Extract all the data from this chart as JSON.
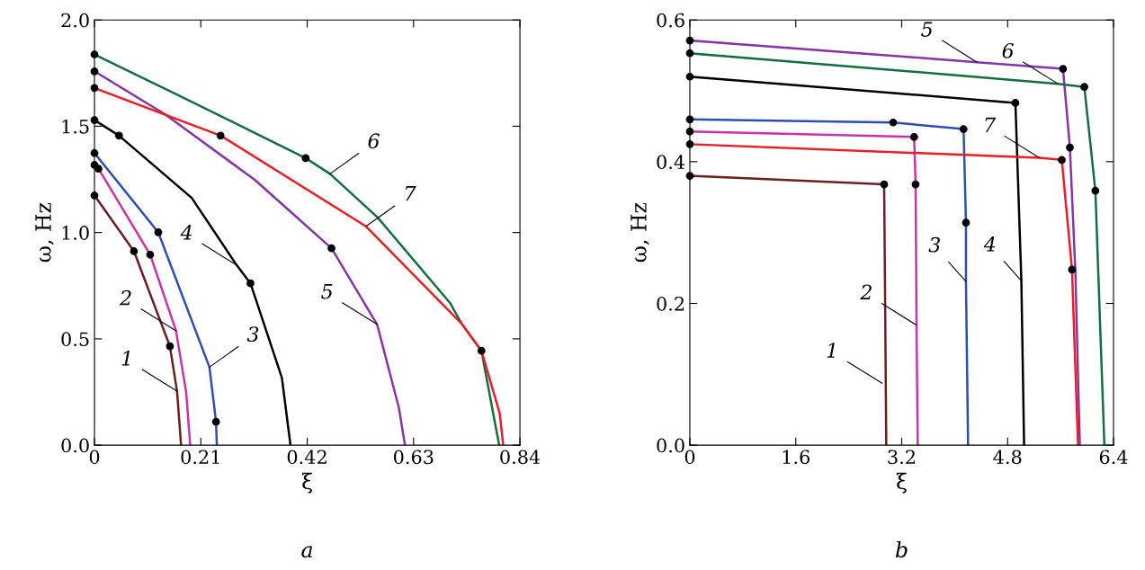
{
  "chart_data": [
    {
      "type": "line",
      "xlabel": "ξ",
      "ylabel": "ω, Hz",
      "xlim": [
        0,
        0.84
      ],
      "ylim": [
        0,
        2.0
      ],
      "xticks": [
        {
          "value": 0,
          "label": "0"
        },
        0.21,
        0.42,
        0.63,
        0.84
      ],
      "yticks": [
        {
          "value": 0,
          "label": "0.0"
        },
        0.5,
        {
          "value": 1,
          "label": "1.0"
        },
        1.5,
        {
          "value": 2,
          "label": "2.0"
        }
      ],
      "grid": false,
      "legend": false,
      "series": [
        {
          "color": "#6b1f1f",
          "x": [
            0,
            0.078,
            0.149,
            0.163,
            0.171
          ],
          "values": [
            1.175,
            0.912,
            0.465,
            0.254,
            0
          ]
        },
        {
          "color": "#cc33aa",
          "x": [
            0,
            0.008,
            0.11,
            0.161,
            0.181,
            0.189
          ],
          "values": [
            1.318,
            1.3,
            0.896,
            0.538,
            0.25,
            0
          ]
        },
        {
          "color": "#2a4fb5",
          "x": [
            0,
            0.126,
            0.227,
            0.24,
            0.2416
          ],
          "values": [
            1.374,
            1.001,
            0.367,
            0.11,
            0
          ]
        },
        {
          "color": "#000000",
          "x": [
            0,
            0.0485,
            0.192,
            0.281,
            0.308,
            0.37,
            0.387
          ],
          "values": [
            1.529,
            1.456,
            1.163,
            0.846,
            0.761,
            0.317,
            0
          ]
        },
        {
          "color": "#8833aa",
          "x": [
            0,
            0.139,
            0.317,
            0.468,
            0.558,
            0.601,
            0.613
          ],
          "values": [
            1.758,
            1.557,
            1.247,
            0.926,
            0.568,
            0.176,
            0
          ]
        },
        {
          "color": "#12703c",
          "x": [
            0,
            0.169,
            0.417,
            0.465,
            0.559,
            0.702,
            0.725,
            0.764,
            0.799
          ],
          "values": [
            1.838,
            1.642,
            1.35,
            1.276,
            1.071,
            0.669,
            0.571,
            0.444,
            0
          ]
        },
        {
          "color": "#ee1c24",
          "x": [
            0,
            0.249,
            0.536,
            0.725,
            0.764,
            0.8,
            0.807
          ],
          "values": [
            1.68,
            1.456,
            1.029,
            0.571,
            0.444,
            0.15,
            0
          ]
        },
        {
          "type": "scatter",
          "color": "#000000",
          "marker": "circle",
          "x": [
            0,
            0,
            0,
            0,
            0,
            0,
            0.008,
            0,
            0.0485,
            0.249,
            0.417,
            0.126,
            0.078,
            0.11,
            0.308,
            0.468,
            0.149,
            0.24,
            0.764
          ],
          "values": [
            1.838,
            1.758,
            1.68,
            1.529,
            1.374,
            1.318,
            1.3,
            1.175,
            1.456,
            1.456,
            1.35,
            1.001,
            0.912,
            0.896,
            0.761,
            0.926,
            0.465,
            0.11,
            0.444
          ]
        }
      ],
      "annotations": [
        {
          "text": "1",
          "x": 0.163,
          "y": 0.254
        },
        {
          "text": "2",
          "x": 0.161,
          "y": 0.538
        },
        {
          "text": "3",
          "x": 0.227,
          "y": 0.367
        },
        {
          "text": "4",
          "x": 0.281,
          "y": 0.846
        },
        {
          "text": "5",
          "x": 0.558,
          "y": 0.568
        },
        {
          "text": "6",
          "x": 0.465,
          "y": 1.276
        },
        {
          "text": "7",
          "x": 0.536,
          "y": 1.029
        },
        "a"
      ]
    },
    {
      "type": "line",
      "xlabel": "ξ",
      "ylabel": "ω, Hz",
      "xlim": [
        0,
        6.4
      ],
      "ylim": [
        0,
        0.6
      ],
      "xticks": [
        {
          "value": 0,
          "label": "0"
        },
        1.6,
        3.2,
        4.8,
        6.4
      ],
      "yticks": [
        {
          "value": 0,
          "label": "0.0"
        },
        0.2,
        0.4,
        0.6
      ],
      "grid": false,
      "legend": false,
      "series": [
        {
          "color": "#6b1f1f",
          "x": [
            0,
            2.935,
            2.95,
            2.967
          ],
          "values": [
            0.38,
            0.368,
            0.2,
            0
          ]
        },
        {
          "color": "#cc33aa",
          "x": [
            0,
            3.388,
            3.41,
            3.424,
            3.442
          ],
          "values": [
            0.4426,
            0.4349,
            0.368,
            0.1694,
            0
          ]
        },
        {
          "color": "#2a4fb5",
          "x": [
            0,
            3.071,
            4.135,
            4.171,
            4.171,
            4.203
          ],
          "values": [
            0.4596,
            0.4553,
            0.446,
            0.314,
            0.231,
            0
          ]
        },
        {
          "color": "#000000",
          "x": [
            0,
            4.918,
            5.008,
            5.049
          ],
          "values": [
            0.52,
            0.483,
            0.232,
            0
          ]
        },
        {
          "color": "#8833aa",
          "x": [
            0,
            4.338,
            5.637,
            5.741,
            5.823,
            5.891
          ],
          "values": [
            0.571,
            0.5404,
            0.531,
            0.42,
            0.247,
            0
          ]
        },
        {
          "color": "#12703c",
          "x": [
            0,
            5.56,
            5.959,
            6.126,
            6.262
          ],
          "values": [
            0.553,
            0.51,
            0.5055,
            0.359,
            0
          ]
        },
        {
          "color": "#ee1c24",
          "x": [
            0,
            5.28,
            5.619,
            5.773,
            5.864
          ],
          "values": [
            0.4247,
            0.4055,
            0.4026,
            0.2477,
            0
          ]
        },
        {
          "type": "scatter",
          "color": "#000000",
          "marker": "circle",
          "x": [
            0,
            0,
            0,
            0,
            0,
            0,
            0,
            2.935,
            3.388,
            3.41,
            3.071,
            4.135,
            4.171,
            4.918,
            5.637,
            5.741,
            5.959,
            6.126,
            5.619,
            5.773
          ],
          "values": [
            0.571,
            0.553,
            0.52,
            0.4596,
            0.4426,
            0.4247,
            0.38,
            0.368,
            0.4349,
            0.368,
            0.4553,
            0.446,
            0.314,
            0.483,
            0.531,
            0.42,
            0.5055,
            0.359,
            0.4026,
            0.2477
          ]
        }
      ],
      "annotations": [
        {
          "text": "1",
          "x": 2.904,
          "y": 0.0873
        },
        {
          "text": "2",
          "x": 3.424,
          "y": 0.1694
        },
        {
          "text": "3",
          "x": 4.171,
          "y": 0.231
        },
        {
          "text": "4",
          "x": 5.008,
          "y": 0.232
        },
        {
          "text": "5",
          "x": 4.338,
          "y": 0.5404
        },
        {
          "text": "6",
          "x": 5.56,
          "y": 0.51
        },
        {
          "text": "7",
          "x": 5.28,
          "y": 0.4055
        },
        "b"
      ]
    }
  ]
}
